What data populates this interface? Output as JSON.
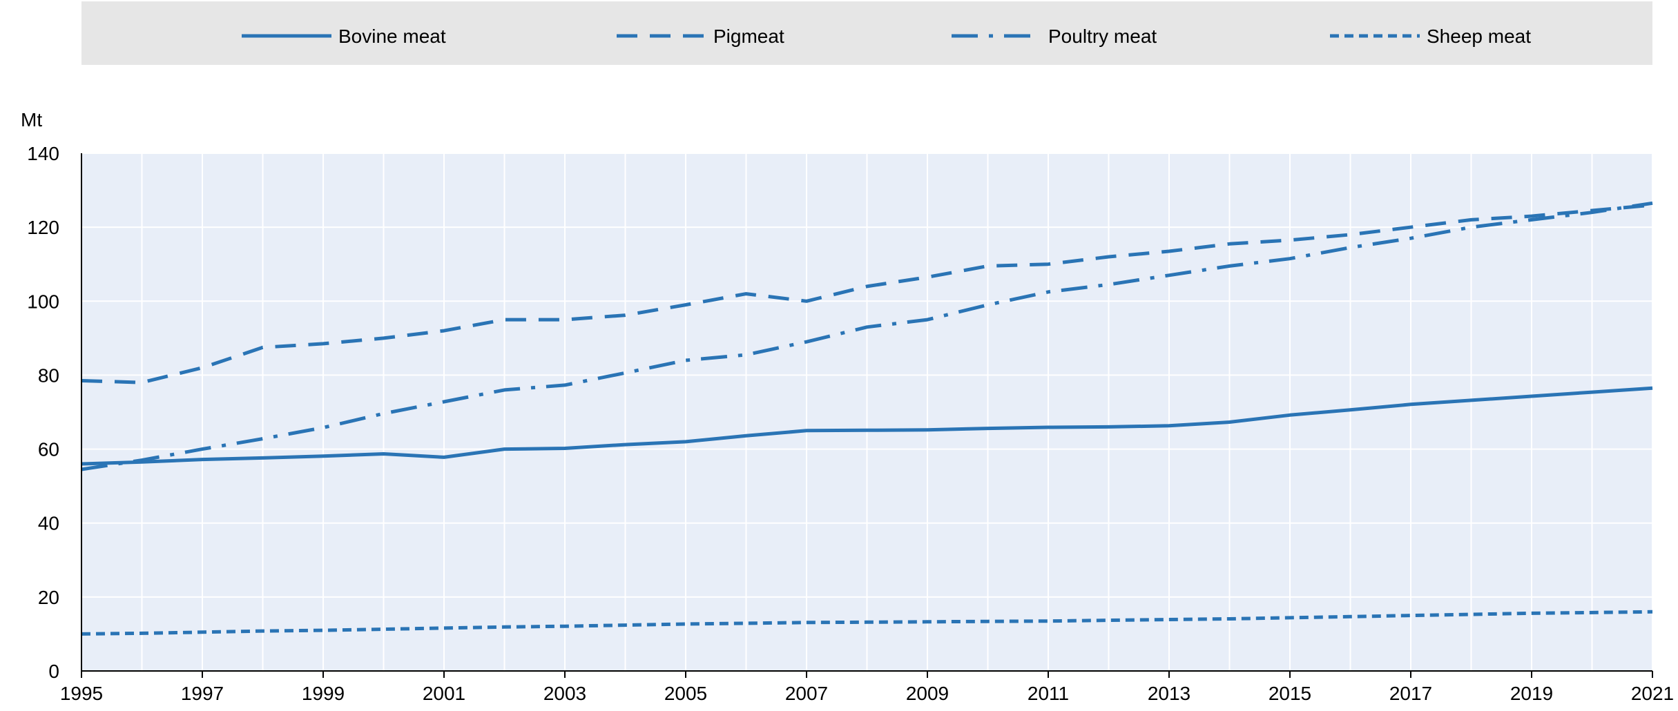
{
  "chart_data": {
    "type": "line",
    "ylabel": "Mt",
    "ylim": [
      0,
      140
    ],
    "xlim": [
      1995,
      2021
    ],
    "yticks": [
      "0",
      "20",
      "40",
      "60",
      "80",
      "100",
      "120",
      "140"
    ],
    "xticks": [
      "1995",
      "1997",
      "1999",
      "2001",
      "2003",
      "2005",
      "2007",
      "2009",
      "2011",
      "2013",
      "2015",
      "2017",
      "2019",
      "2021"
    ],
    "grid": true,
    "legend_position": "top",
    "x": [
      1995,
      1996,
      1997,
      1998,
      1999,
      2000,
      2001,
      2002,
      2003,
      2004,
      2005,
      2006,
      2007,
      2008,
      2009,
      2010,
      2011,
      2012,
      2013,
      2014,
      2015,
      2016,
      2017,
      2018,
      2019,
      2020,
      2021
    ],
    "series": [
      {
        "name": "Bovine meat",
        "style": "solid",
        "values": [
          56,
          56.5,
          57.2,
          57.6,
          58.1,
          58.7,
          57.8,
          60,
          60.2,
          61.2,
          62,
          63.6,
          65,
          65.1,
          65.2,
          65.6,
          65.9,
          66,
          66.3,
          67.3,
          69.2,
          70.6,
          72.1,
          73.2,
          74.3,
          75.4,
          76.5
        ]
      },
      {
        "name": "Pigmeat",
        "style": "dashed",
        "values": [
          78.5,
          78,
          82,
          87.5,
          88.5,
          90,
          92,
          95,
          95,
          96.2,
          99,
          102,
          100,
          104,
          106.5,
          109.5,
          110,
          112,
          113.5,
          115.5,
          116.5,
          118,
          120,
          122,
          123,
          124.5,
          126
        ]
      },
      {
        "name": "Poultry meat",
        "style": "dash-dot",
        "values": [
          54.5,
          57,
          60,
          62.8,
          65.8,
          69.6,
          72.8,
          76,
          77.3,
          80.6,
          84,
          85.5,
          89,
          93,
          95,
          99,
          102.5,
          104.5,
          107,
          109.5,
          111.5,
          114.5,
          117,
          120,
          122,
          124,
          126.5
        ]
      },
      {
        "name": "Sheep meat",
        "style": "dotted",
        "values": [
          10,
          10.2,
          10.5,
          10.8,
          11,
          11.3,
          11.6,
          11.9,
          12.1,
          12.4,
          12.7,
          12.9,
          13.1,
          13.2,
          13.3,
          13.4,
          13.5,
          13.7,
          13.9,
          14.1,
          14.4,
          14.7,
          15,
          15.3,
          15.6,
          15.8,
          16
        ]
      }
    ],
    "colors": {
      "line": "#2a74b5",
      "legend_background": "#e6e6e6",
      "plot_background": "#e8eef8",
      "grid": "#ffffff",
      "text": "#000000"
    }
  }
}
